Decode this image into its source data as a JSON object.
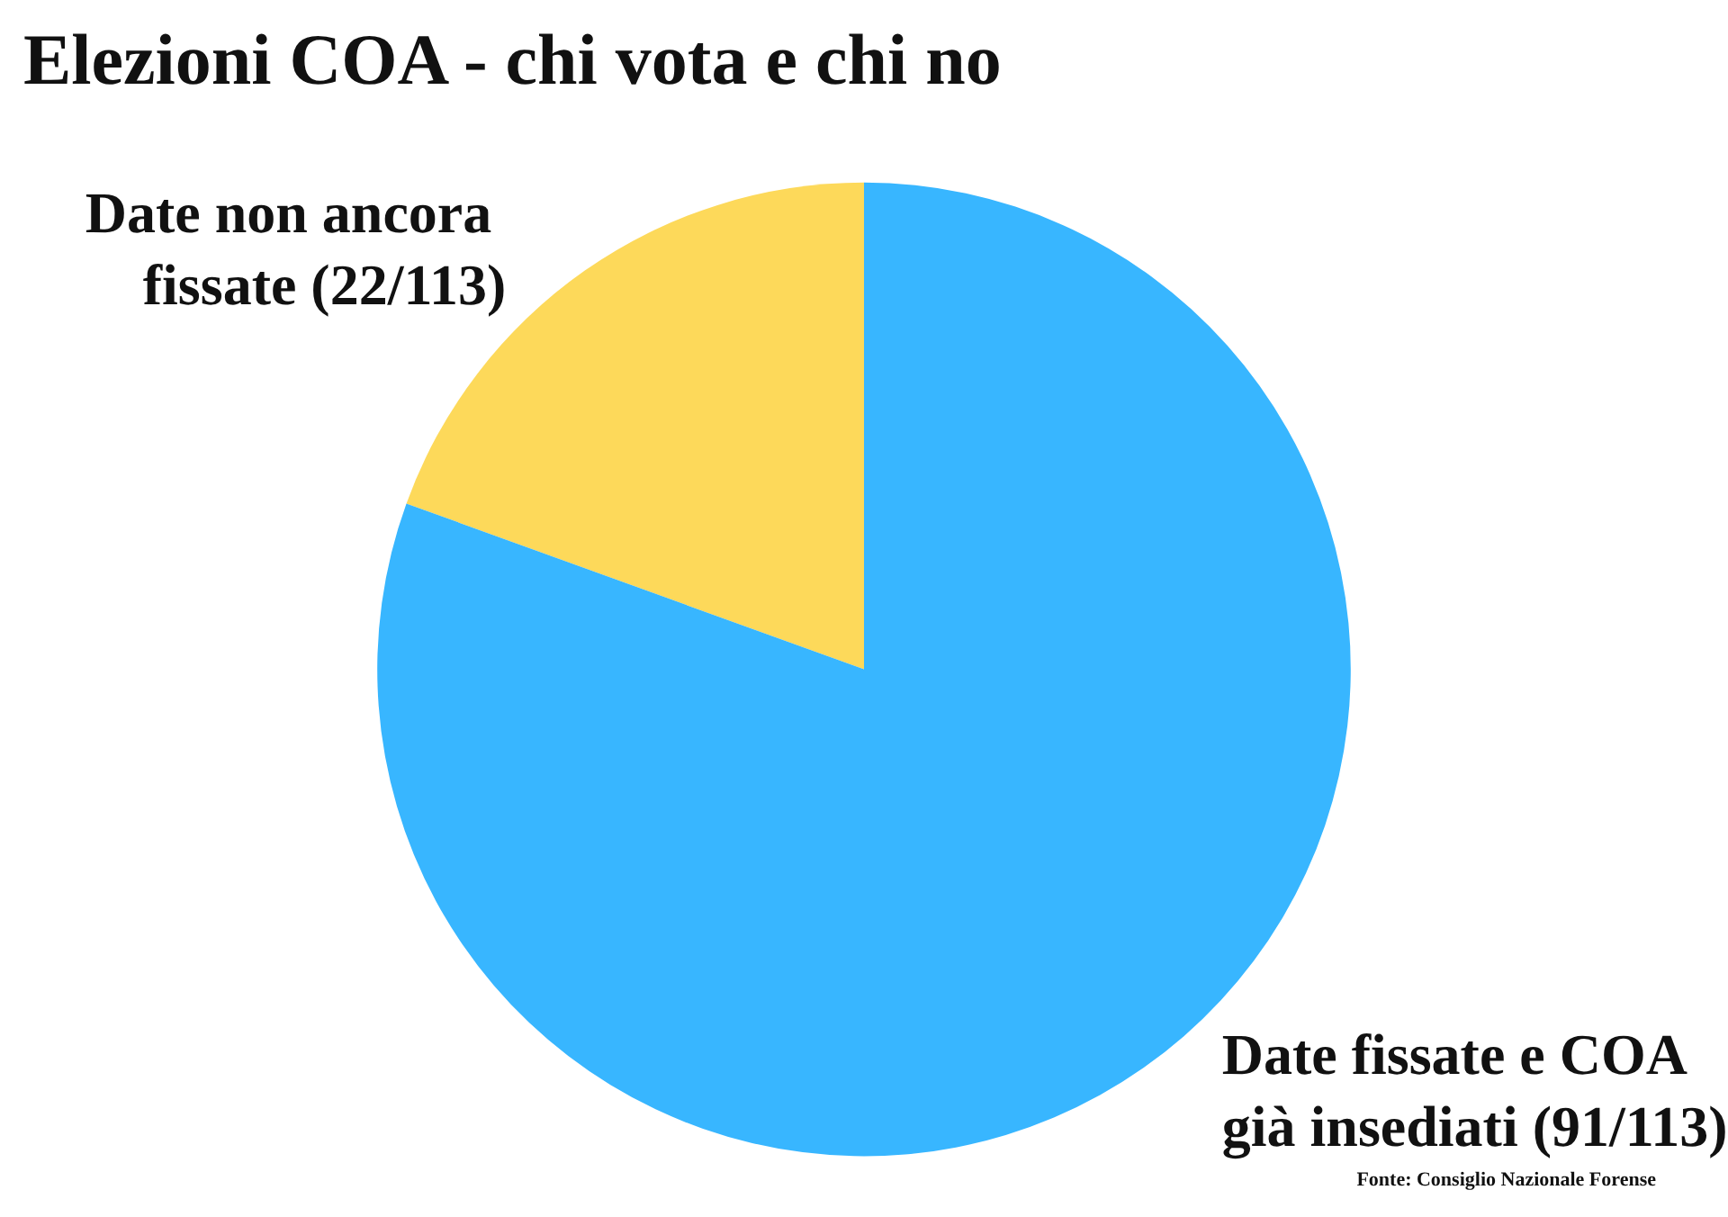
{
  "chart_data": {
    "type": "pie",
    "title": "Elezioni COA - chi vota e chi no",
    "categories": [
      "Date non ancora fissate",
      "Date fissate e COA già insediati"
    ],
    "values": [
      22,
      91
    ],
    "value_labels": [
      "(22/113)",
      "(91/113)"
    ],
    "colors": [
      "#fdd95a",
      "#38b6ff"
    ],
    "legend": false,
    "annotations": [
      "Fonte: Consiglio Nazionale Forense"
    ]
  }
}
